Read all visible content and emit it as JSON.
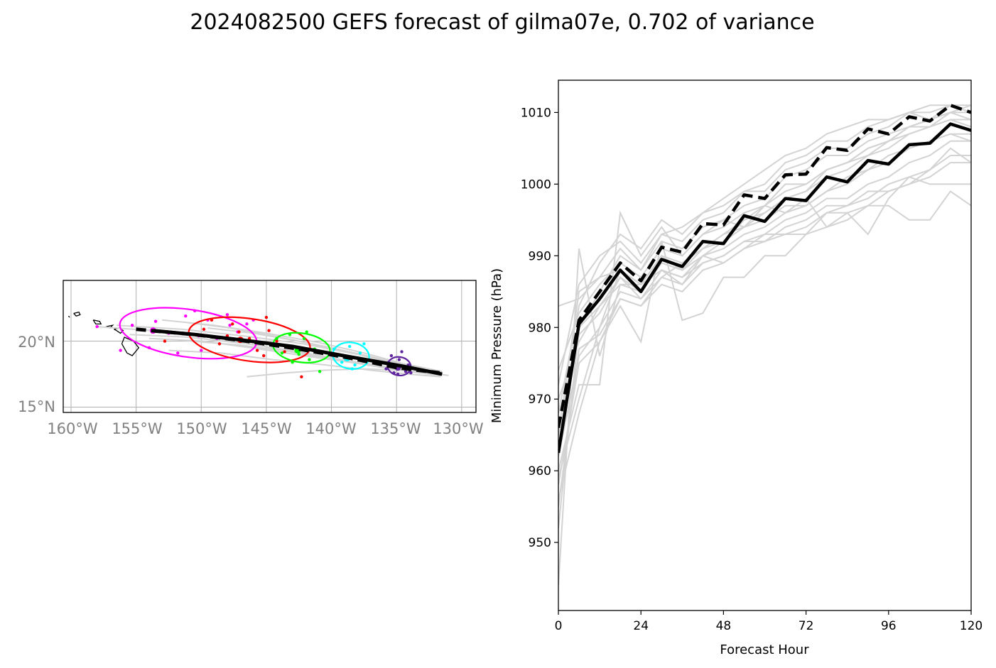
{
  "figure": {
    "title": "2024082500 GEFS forecast of gilma07e, 0.702 of variance"
  },
  "map": {
    "lon_ticks": [
      "160°W",
      "155°W",
      "150°W",
      "145°W",
      "140°W",
      "135°W",
      "130°W"
    ],
    "lat_ticks": [
      "20°N",
      "15°N"
    ],
    "lon_range": [
      -160.6,
      -128.9
    ],
    "lat_range": [
      14.6,
      24.6
    ],
    "ensemble_color": "#d3d3d3",
    "mean_track": [
      [
        -153.7,
        20.8
      ],
      [
        -150.5,
        20.5
      ],
      [
        -147.0,
        20.1
      ],
      [
        -143.0,
        19.6
      ],
      [
        -138.5,
        18.8
      ],
      [
        -134.5,
        18.1
      ],
      [
        -131.5,
        17.5
      ]
    ],
    "control_track": [
      [
        -155.0,
        20.9
      ],
      [
        -150.5,
        20.5
      ],
      [
        -146.5,
        20.0
      ],
      [
        -142.5,
        19.4
      ],
      [
        -138.5,
        18.7
      ],
      [
        -135.0,
        18.0
      ],
      [
        -131.7,
        17.6
      ]
    ],
    "ensemble_tracks": [
      [
        [
          -156.5,
          21.2
        ],
        [
          -151.5,
          20.9
        ],
        [
          -146.8,
          20.4
        ],
        [
          -142.2,
          19.8
        ],
        [
          -138.0,
          19.0
        ],
        [
          -134.6,
          18.2
        ],
        [
          -131.5,
          17.6
        ]
      ],
      [
        [
          -154.0,
          20.2
        ],
        [
          -149.8,
          20.0
        ],
        [
          -145.5,
          19.4
        ],
        [
          -141.5,
          18.8
        ],
        [
          -137.8,
          18.3
        ],
        [
          -134.3,
          17.8
        ],
        [
          -131.6,
          17.4
        ]
      ],
      [
        [
          -151.0,
          21.4
        ],
        [
          -147.8,
          21.0
        ],
        [
          -144.0,
          20.3
        ],
        [
          -140.5,
          19.6
        ],
        [
          -137.3,
          18.9
        ],
        [
          -134.4,
          18.2
        ],
        [
          -131.5,
          17.6
        ]
      ],
      [
        [
          -158.0,
          21.1
        ],
        [
          -152.5,
          20.7
        ],
        [
          -148.0,
          20.1
        ],
        [
          -143.5,
          19.3
        ],
        [
          -139.2,
          18.6
        ],
        [
          -135.3,
          18.0
        ],
        [
          -132.0,
          17.5
        ]
      ],
      [
        [
          -152.5,
          19.3
        ],
        [
          -148.5,
          19.1
        ],
        [
          -144.5,
          18.6
        ],
        [
          -140.5,
          18.2
        ],
        [
          -137.0,
          17.8
        ],
        [
          -134.0,
          17.5
        ],
        [
          -131.6,
          17.3
        ]
      ],
      [
        [
          -149.5,
          21.0
        ],
        [
          -146.0,
          20.6
        ],
        [
          -142.5,
          20.0
        ],
        [
          -139.3,
          19.3
        ],
        [
          -136.5,
          18.7
        ],
        [
          -134.0,
          18.1
        ],
        [
          -131.5,
          17.6
        ]
      ],
      [
        [
          -155.5,
          20.5
        ],
        [
          -151.0,
          20.3
        ],
        [
          -146.5,
          19.8
        ],
        [
          -142.5,
          19.2
        ],
        [
          -138.7,
          18.5
        ],
        [
          -135.0,
          17.9
        ],
        [
          -131.8,
          17.4
        ]
      ],
      [
        [
          -146.5,
          17.3
        ],
        [
          -143.5,
          17.6
        ],
        [
          -140.5,
          17.8
        ],
        [
          -137.5,
          17.9
        ],
        [
          -134.8,
          17.8
        ],
        [
          -132.5,
          17.6
        ],
        [
          -131.0,
          17.4
        ]
      ],
      [
        [
          -153.0,
          21.6
        ],
        [
          -149.0,
          21.2
        ],
        [
          -145.0,
          20.6
        ],
        [
          -141.0,
          19.9
        ],
        [
          -137.5,
          19.1
        ],
        [
          -134.5,
          18.3
        ],
        [
          -131.5,
          17.7
        ]
      ],
      [
        [
          -150.8,
          20.0
        ],
        [
          -147.0,
          19.7
        ],
        [
          -143.2,
          19.2
        ],
        [
          -139.8,
          18.6
        ],
        [
          -136.7,
          18.1
        ],
        [
          -134.1,
          17.7
        ],
        [
          -131.7,
          17.4
        ]
      ]
    ],
    "ellipses": [
      {
        "color": "#ff00ff",
        "center": [
          -151.0,
          20.6
        ],
        "radii": [
          5.3,
          1.8
        ],
        "mean": [
          -153.7,
          20.8
        ],
        "points": [
          [
            -158.0,
            21.1
          ],
          [
            -156.2,
            19.3
          ],
          [
            -155.3,
            21.2
          ],
          [
            -153.5,
            21.5
          ],
          [
            -152.5,
            20.6
          ],
          [
            -151.8,
            19.1
          ],
          [
            -151.2,
            21.9
          ],
          [
            -150.5,
            22.3
          ],
          [
            -150.2,
            20.4
          ],
          [
            -149.5,
            21.6
          ],
          [
            -148.8,
            20.2
          ],
          [
            -147.8,
            21.2
          ],
          [
            -147.2,
            20.7
          ],
          [
            -146.5,
            21.3
          ],
          [
            -146.0,
            21.6
          ],
          [
            -154.0,
            19.5
          ],
          [
            -150.0,
            19.3
          ],
          [
            -148.0,
            22.0
          ]
        ]
      },
      {
        "color": "#ff0000",
        "center": [
          -146.3,
          20.1
        ],
        "radii": [
          4.7,
          1.6
        ],
        "mean": [
          -147.0,
          20.1
        ],
        "points": [
          [
            -152.8,
            20.0
          ],
          [
            -149.8,
            20.9
          ],
          [
            -148.6,
            19.8
          ],
          [
            -147.6,
            21.3
          ],
          [
            -147.1,
            20.7
          ],
          [
            -146.3,
            20.2
          ],
          [
            -145.7,
            19.3
          ],
          [
            -145.2,
            18.9
          ],
          [
            -144.2,
            20.0
          ],
          [
            -143.6,
            19.2
          ],
          [
            -142.3,
            17.3
          ],
          [
            -148.0,
            20.4
          ],
          [
            -145.0,
            21.8
          ],
          [
            -149.2,
            21.6
          ],
          [
            -144.8,
            20.8
          ]
        ]
      },
      {
        "color": "#00ff00",
        "center": [
          -142.3,
          19.5
        ],
        "radii": [
          2.2,
          1.1
        ],
        "mean": [
          -142.6,
          19.3
        ],
        "points": [
          [
            -144.8,
            19.8
          ],
          [
            -143.8,
            19.1
          ],
          [
            -143.2,
            20.5
          ],
          [
            -142.5,
            19.0
          ],
          [
            -142.1,
            20.2
          ],
          [
            -141.7,
            18.6
          ],
          [
            -141.3,
            19.4
          ],
          [
            -140.9,
            17.7
          ],
          [
            -140.4,
            19.1
          ],
          [
            -141.9,
            20.7
          ],
          [
            -143.0,
            18.4
          ],
          [
            -144.2,
            20.2
          ]
        ]
      },
      {
        "color": "#00ffff",
        "center": [
          -138.5,
          18.9
        ],
        "radii": [
          1.4,
          1.0
        ],
        "mean": [
          -138.8,
          18.7
        ],
        "points": [
          [
            -139.8,
            19.4
          ],
          [
            -139.2,
            18.4
          ],
          [
            -138.6,
            19.6
          ],
          [
            -138.2,
            18.2
          ],
          [
            -137.8,
            19.1
          ],
          [
            -137.3,
            18.6
          ],
          [
            -138.4,
            17.9
          ],
          [
            -139.5,
            18.9
          ],
          [
            -137.5,
            19.8
          ]
        ]
      },
      {
        "color": "#5f259f",
        "center": [
          -134.8,
          18.1
        ],
        "radii": [
          0.9,
          0.7
        ],
        "mean": [
          -134.9,
          18.0
        ],
        "points": [
          [
            -135.6,
            18.4
          ],
          [
            -135.2,
            17.6
          ],
          [
            -134.8,
            18.6
          ],
          [
            -134.3,
            17.7
          ],
          [
            -134.6,
            19.2
          ],
          [
            -134.1,
            18.2
          ],
          [
            -135.4,
            18.9
          ],
          [
            -133.9,
            17.6
          ],
          [
            -134.9,
            17.5
          ],
          [
            -135.8,
            17.9
          ]
        ]
      }
    ],
    "coastlines": [
      [
        [
          -156.1,
          19.8
        ],
        [
          -155.9,
          20.3
        ],
        [
          -155.2,
          20.0
        ],
        [
          -154.8,
          19.5
        ],
        [
          -155.3,
          18.9
        ],
        [
          -155.7,
          19.1
        ],
        [
          -156.1,
          19.8
        ]
      ],
      [
        [
          -156.7,
          20.9
        ],
        [
          -156.3,
          21.0
        ],
        [
          -156.0,
          20.8
        ],
        [
          -156.2,
          20.6
        ],
        [
          -156.5,
          20.8
        ],
        [
          -156.7,
          20.9
        ]
      ],
      [
        [
          -157.3,
          21.1
        ],
        [
          -156.8,
          21.2
        ],
        [
          -157.0,
          21.0
        ],
        [
          -157.3,
          21.1
        ]
      ],
      [
        [
          -158.3,
          21.6
        ],
        [
          -157.8,
          21.5
        ],
        [
          -157.7,
          21.3
        ],
        [
          -158.1,
          21.3
        ],
        [
          -158.3,
          21.6
        ]
      ],
      [
        [
          -159.8,
          22.1
        ],
        [
          -159.4,
          22.2
        ],
        [
          -159.3,
          22.0
        ],
        [
          -159.6,
          21.9
        ],
        [
          -159.8,
          22.1
        ]
      ],
      [
        [
          -160.2,
          21.9
        ],
        [
          -160.1,
          21.8
        ]
      ]
    ]
  },
  "chart_data": {
    "type": "line",
    "xlabel": "Forecast Hour",
    "ylabel": "Minimum Pressure (hPa)",
    "xlim": [
      0,
      120
    ],
    "ylim": [
      940.5,
      1014.5
    ],
    "xticks": [
      0,
      24,
      48,
      72,
      96,
      120
    ],
    "yticks": [
      950,
      960,
      970,
      980,
      990,
      1000,
      1010
    ],
    "x": [
      0,
      6,
      12,
      18,
      24,
      30,
      36,
      42,
      48,
      54,
      60,
      66,
      72,
      78,
      84,
      90,
      96,
      102,
      108,
      114,
      120
    ],
    "series": [
      {
        "style": "mean",
        "color": "#000000",
        "dash": false,
        "values": [
          962.5,
          980.5,
          984,
          988,
          985,
          989.5,
          988.5,
          992,
          991.7,
          995.6,
          994.8,
          998,
          997.7,
          1001,
          1000.3,
          1003.3,
          1002.8,
          1005.5,
          1005.7,
          1008.4,
          1007.5
        ]
      },
      {
        "style": "control",
        "color": "#000000",
        "dash": true,
        "values": [
          966,
          981,
          985,
          989,
          986.5,
          991.2,
          990.5,
          994.5,
          994.3,
          998.5,
          998,
          1001.3,
          1001.4,
          1005.1,
          1004.7,
          1007.7,
          1007,
          1009.4,
          1008.8,
          1011,
          1010
        ]
      }
    ],
    "ensemble": [
      [
        944,
        991,
        976,
        986,
        985,
        990,
        988,
        990,
        992,
        994,
        996,
        998,
        999,
        1002,
        1003,
        1004,
        1006,
        1008,
        1008,
        1010,
        1011
      ],
      [
        952,
        980,
        985,
        990,
        988,
        992,
        991,
        994,
        995,
        997,
        998,
        1001,
        1002,
        1004,
        1004,
        1006,
        1007,
        1008,
        1009,
        1010,
        1010
      ],
      [
        958,
        975,
        978,
        984,
        983,
        987,
        986,
        989,
        990,
        992,
        993,
        995,
        996,
        998,
        998,
        1000,
        1001,
        1003,
        1004,
        1006,
        1006
      ],
      [
        965,
        985,
        987,
        991,
        988,
        993,
        992,
        995,
        996,
        999,
        999,
        1002,
        1003,
        1005,
        1005,
        1007,
        1008,
        1010,
        1010,
        1011,
        1011
      ],
      [
        970,
        978,
        983,
        987,
        985,
        989,
        988,
        991,
        992,
        995,
        996,
        998,
        999,
        1001,
        1002,
        1004,
        1005,
        1007,
        1008,
        1009,
        1009
      ],
      [
        974,
        982,
        986,
        989,
        987,
        991,
        990,
        993,
        994,
        996,
        997,
        1000,
        1000,
        1002,
        1003,
        1005,
        1006,
        1007,
        1008,
        1009,
        1008
      ],
      [
        960,
        972,
        972,
        996,
        990,
        994,
        990,
        993,
        995,
        994,
        997,
        996,
        998,
        994,
        996,
        993,
        998,
        1001,
        1000,
        1000,
        1000
      ],
      [
        956,
        968,
        978,
        983,
        978,
        992,
        981,
        982,
        987,
        987,
        990,
        990,
        993,
        994,
        995,
        997,
        999,
        1000,
        1002,
        1005,
        1003
      ],
      [
        962,
        976,
        980,
        985,
        984,
        988,
        987,
        990,
        991,
        993,
        994,
        996,
        997,
        999,
        1000,
        1002,
        1003,
        1005,
        1006,
        1007,
        1006
      ],
      [
        968,
        983,
        989,
        993,
        991,
        995,
        993,
        996,
        997,
        999,
        1000,
        1003,
        1004,
        1006,
        1006,
        1008,
        1009,
        1010,
        1009,
        1011,
        1010
      ],
      [
        972,
        986,
        990,
        992,
        989,
        993,
        994,
        996,
        998,
        1000,
        1002,
        1004,
        1005,
        1007,
        1008,
        1009,
        1009,
        1010,
        1011,
        1011,
        1010
      ],
      [
        983,
        984,
        987,
        988,
        986,
        990,
        989,
        991,
        993,
        995,
        997,
        999,
        1000,
        1002,
        1003,
        1005,
        1006,
        1008,
        1009,
        1010,
        1009
      ],
      [
        959,
        970,
        980,
        988,
        986,
        988,
        987,
        989,
        990,
        992,
        992,
        994,
        995,
        997,
        997,
        999,
        999,
        1000,
        1001,
        1003,
        1003
      ],
      [
        966,
        980,
        983,
        986,
        986,
        988,
        986,
        990,
        989,
        991,
        993,
        993,
        994,
        996,
        997,
        998,
        1000,
        1001,
        1002,
        1004,
        1004
      ],
      [
        963,
        979,
        982,
        987,
        984,
        987,
        989,
        991,
        993,
        994,
        995,
        997,
        997,
        999,
        1001,
        1002,
        1004,
        1005,
        1006,
        1007,
        1007
      ],
      [
        955,
        977,
        979,
        984,
        983,
        986,
        985,
        988,
        989,
        991,
        992,
        993,
        993,
        996,
        996,
        997,
        997,
        995,
        995,
        999,
        997
      ]
    ]
  }
}
